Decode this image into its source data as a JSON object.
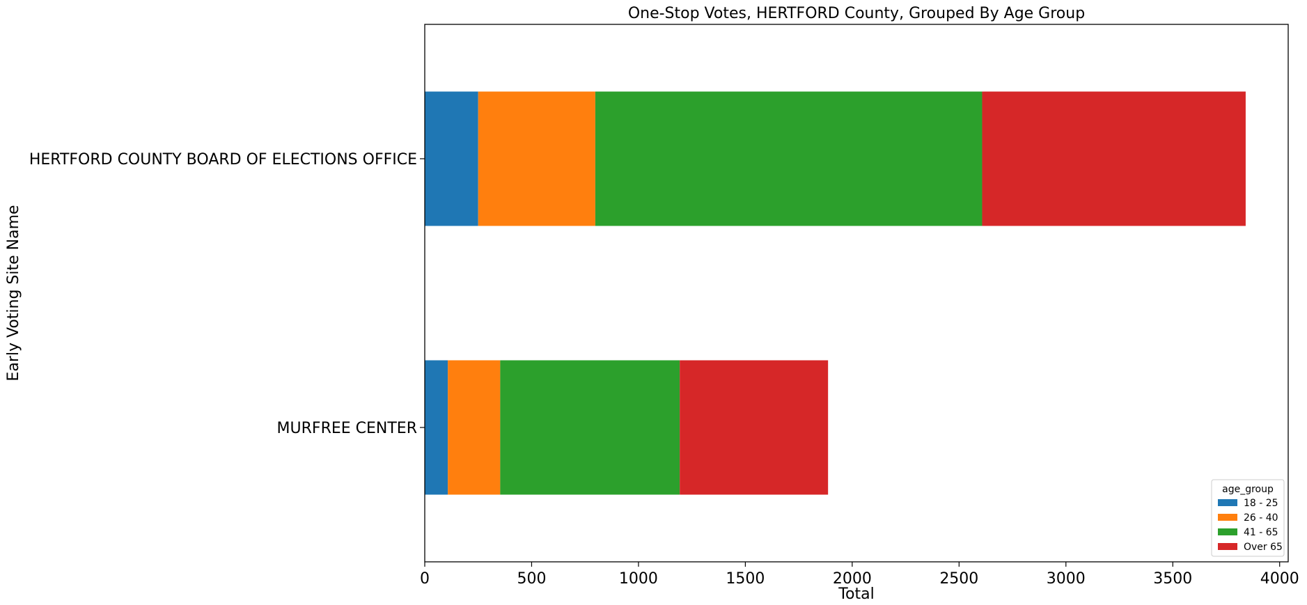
{
  "chart_data": {
    "type": "bar",
    "orientation": "horizontal",
    "stacked": true,
    "title": "One-Stop Votes, HERTFORD County, Grouped By Age Group",
    "xlabel": "Total",
    "ylabel": "Early Voting Site Name",
    "xlim": [
      0,
      4040
    ],
    "xticks": [
      0,
      500,
      1000,
      1500,
      2000,
      2500,
      3000,
      3500,
      4000
    ],
    "categories": [
      "HERTFORD COUNTY BOARD OF ELECTIONS OFFICE",
      "MURFREE CENTER"
    ],
    "series": [
      {
        "name": "18 - 25",
        "color": "#1f77b4",
        "values": [
          250,
          108
        ]
      },
      {
        "name": "26 - 40",
        "color": "#ff7f0e",
        "values": [
          548,
          245
        ]
      },
      {
        "name": "41 - 65",
        "color": "#2ca02c",
        "values": [
          1810,
          840
        ]
      },
      {
        "name": "Over 65",
        "color": "#d62728",
        "values": [
          1233,
          694
        ]
      }
    ],
    "legend": {
      "title": "age_group",
      "position": "lower-right"
    },
    "grid": false
  }
}
